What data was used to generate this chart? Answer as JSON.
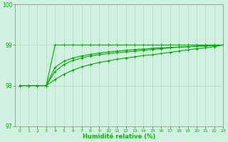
{
  "background_color": "#d0f0e0",
  "grid_color": "#b0d8c0",
  "line_color": "#00aa00",
  "marker_color": "#00aa00",
  "xlabel": "Humidité relative (%)",
  "xlabel_color": "#00bb00",
  "tick_color": "#00aa00",
  "ylim": [
    97,
    100
  ],
  "xlim": [
    -0.5,
    23
  ],
  "yticks": [
    97,
    98,
    99,
    100
  ],
  "xticks": [
    0,
    1,
    2,
    3,
    4,
    5,
    6,
    7,
    8,
    9,
    10,
    11,
    12,
    13,
    14,
    15,
    16,
    17,
    18,
    19,
    20,
    21,
    22,
    23
  ],
  "series": [
    [
      98.0,
      98.0,
      98.0,
      98.0,
      99.0,
      99.0,
      99.0,
      99.0,
      99.0,
      99.0,
      99.0,
      99.0,
      99.0,
      99.0,
      99.0,
      99.0,
      99.0,
      99.0,
      99.0,
      99.0,
      99.0,
      99.0,
      99.0,
      99.0
    ],
    [
      98.0,
      98.0,
      98.0,
      98.0,
      98.15,
      98.28,
      98.38,
      98.46,
      98.52,
      98.57,
      98.61,
      98.65,
      98.68,
      98.71,
      98.74,
      98.76,
      98.79,
      98.82,
      98.85,
      98.88,
      98.91,
      98.93,
      98.96,
      99.0
    ],
    [
      98.0,
      98.0,
      98.0,
      98.0,
      98.35,
      98.52,
      98.62,
      98.68,
      98.73,
      98.76,
      98.79,
      98.81,
      98.83,
      98.85,
      98.87,
      98.89,
      98.91,
      98.93,
      98.95,
      98.96,
      98.97,
      98.98,
      98.99,
      99.0
    ],
    [
      98.0,
      98.0,
      98.0,
      98.0,
      98.45,
      98.6,
      98.68,
      98.73,
      98.77,
      98.8,
      98.83,
      98.85,
      98.87,
      98.89,
      98.9,
      98.92,
      98.93,
      98.94,
      98.95,
      98.96,
      98.97,
      98.98,
      98.99,
      99.0
    ]
  ]
}
